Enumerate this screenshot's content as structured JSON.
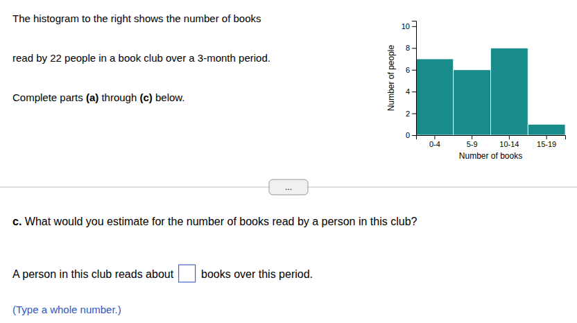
{
  "chart_data": {
    "type": "bar",
    "categories": [
      "0-4",
      "5-9",
      "10-14",
      "15-19"
    ],
    "values": [
      7,
      6,
      8,
      1
    ],
    "color": "#1a8b8b",
    "xlabel": "Number of books",
    "ylabel": "Number of people",
    "ylim": [
      0,
      10.5
    ],
    "yticks": [
      0,
      2,
      4,
      6,
      8,
      10
    ],
    "grid": false,
    "annotations": [
      [
        "The histogram to the right shows the number of books"
      ],
      [
        "read by 22 people in a book club over a 3-month period."
      ],
      [
        "Complete parts ",
        "(a)",
        " through ",
        "(c)",
        " below."
      ],
      [
        "c.",
        " What would you estimate for the number of books read by a person in this club?"
      ],
      [
        "A person in this club reads about ",
        " books over this period."
      ],
      [
        "(Type a whole number.)"
      ],
      [
        "..."
      ]
    ]
  }
}
